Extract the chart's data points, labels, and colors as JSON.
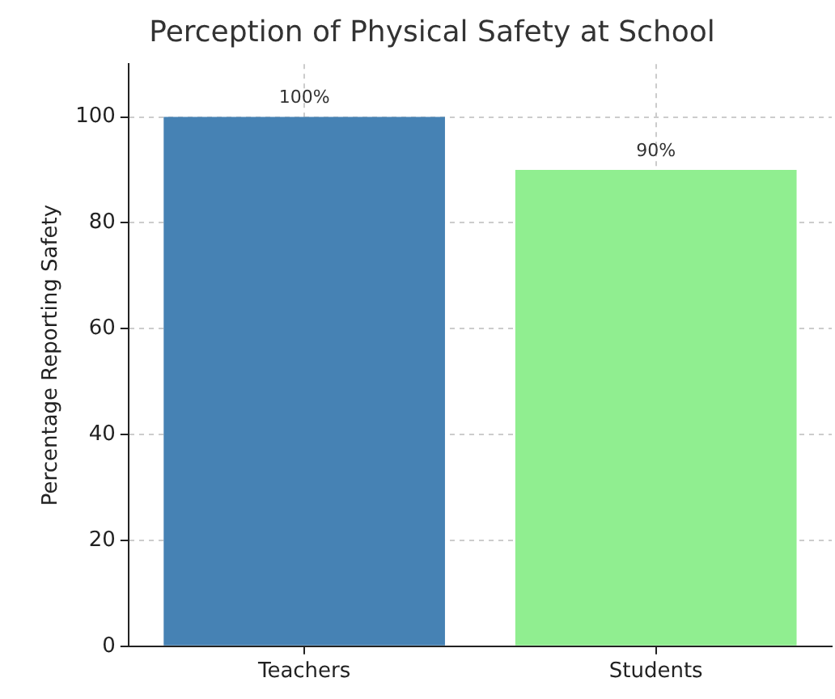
{
  "chart_data": {
    "type": "bar",
    "title": "Perception of Physical Safety at School",
    "ylabel": "Percentage Reporting Safety",
    "categories": [
      "Teachers",
      "Students"
    ],
    "values": [
      100,
      90
    ],
    "colors": [
      "#4682b4",
      "#90ee90"
    ],
    "value_labels": [
      "100%",
      "90%"
    ],
    "ylim": [
      0,
      110
    ],
    "yticks": [
      0,
      20,
      40,
      60,
      80,
      100
    ],
    "grid": true
  }
}
